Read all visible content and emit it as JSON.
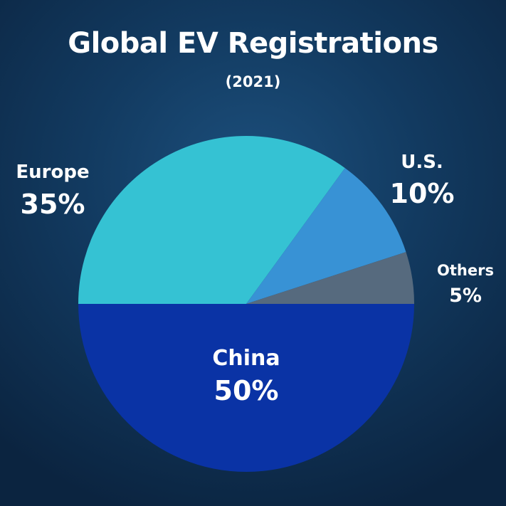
{
  "title": "Global EV Registrations",
  "subtitle": "(2021)",
  "chart_data": {
    "type": "pie",
    "slices": [
      {
        "label": "China",
        "value": 50,
        "value_label": "50%",
        "color": "#0a33a5"
      },
      {
        "label": "Europe",
        "value": 35,
        "value_label": "35%",
        "color": "#35c2d3"
      },
      {
        "label": "U.S.",
        "value": 10,
        "value_label": "10%",
        "color": "#3892d5"
      },
      {
        "label": "Others",
        "value": 5,
        "value_label": "5%",
        "color": "#566a7e"
      }
    ]
  }
}
